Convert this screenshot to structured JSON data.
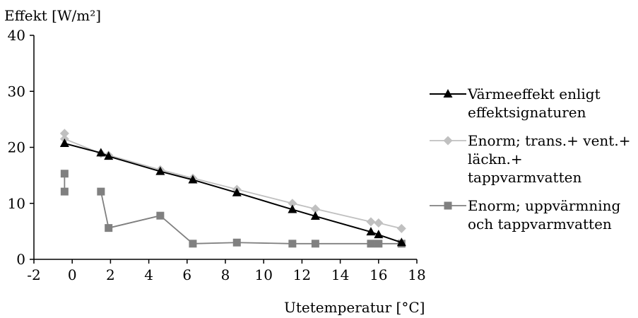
{
  "chart_data": {
    "type": "line",
    "ylabel": "Effekt [W/m²]",
    "xlabel": "Utetemperatur [°C]",
    "xlim": [
      -2,
      18
    ],
    "ylim": [
      0,
      40
    ],
    "xticks": [
      -2,
      0,
      2,
      4,
      6,
      8,
      10,
      12,
      14,
      16,
      18
    ],
    "yticks": [
      0,
      10,
      20,
      30,
      40
    ],
    "grid": false,
    "legend_position": "right",
    "series": [
      {
        "name": "Värmeeffekt enligt effektsignaturen",
        "color": "#000000",
        "marker": "triangle",
        "x": [
          -0.4,
          1.5,
          1.9,
          4.6,
          6.3,
          8.6,
          11.5,
          12.7,
          15.6,
          16.0,
          17.2
        ],
        "y": [
          20.7,
          19.0,
          18.4,
          15.7,
          14.2,
          11.9,
          8.9,
          7.7,
          4.9,
          4.4,
          3.0
        ]
      },
      {
        "name": "Enorm; trans.+ vent.+ läckn.+ tappvarmvatten",
        "color": "#c0c0c0",
        "marker": "diamond",
        "x": [
          -0.4,
          -0.4,
          1.5,
          1.9,
          4.6,
          6.3,
          8.6,
          11.5,
          12.7,
          15.6,
          16.0,
          17.2
        ],
        "y": [
          22.5,
          21.5,
          18.9,
          18.6,
          16.0,
          14.5,
          12.5,
          10.0,
          9.0,
          6.7,
          6.5,
          5.5
        ]
      },
      {
        "name": "Enorm; uppvärmning och tappvarmvatten",
        "color": "#808080",
        "marker": "square",
        "x": [
          -0.4,
          -0.4,
          1.5,
          1.9,
          4.6,
          6.3,
          8.6,
          11.5,
          12.7,
          15.6,
          16.0,
          17.2
        ],
        "y": [
          15.3,
          12.1,
          12.1,
          5.6,
          7.8,
          2.8,
          3.0,
          2.8,
          2.8,
          2.8,
          2.8,
          2.8
        ],
        "segments": [
          [
            0,
            1
          ],
          [
            2,
            4
          ],
          [
            3,
            5
          ],
          [
            5,
            11
          ]
        ]
      }
    ],
    "legend_labels": [
      "Värmeeffekt enligt\neffektsignaturen",
      "Enorm; trans.+ vent.+\nläckn.+ tappvarmvatten",
      "Enorm; uppvärmning\noch tappvarmvatten"
    ]
  }
}
